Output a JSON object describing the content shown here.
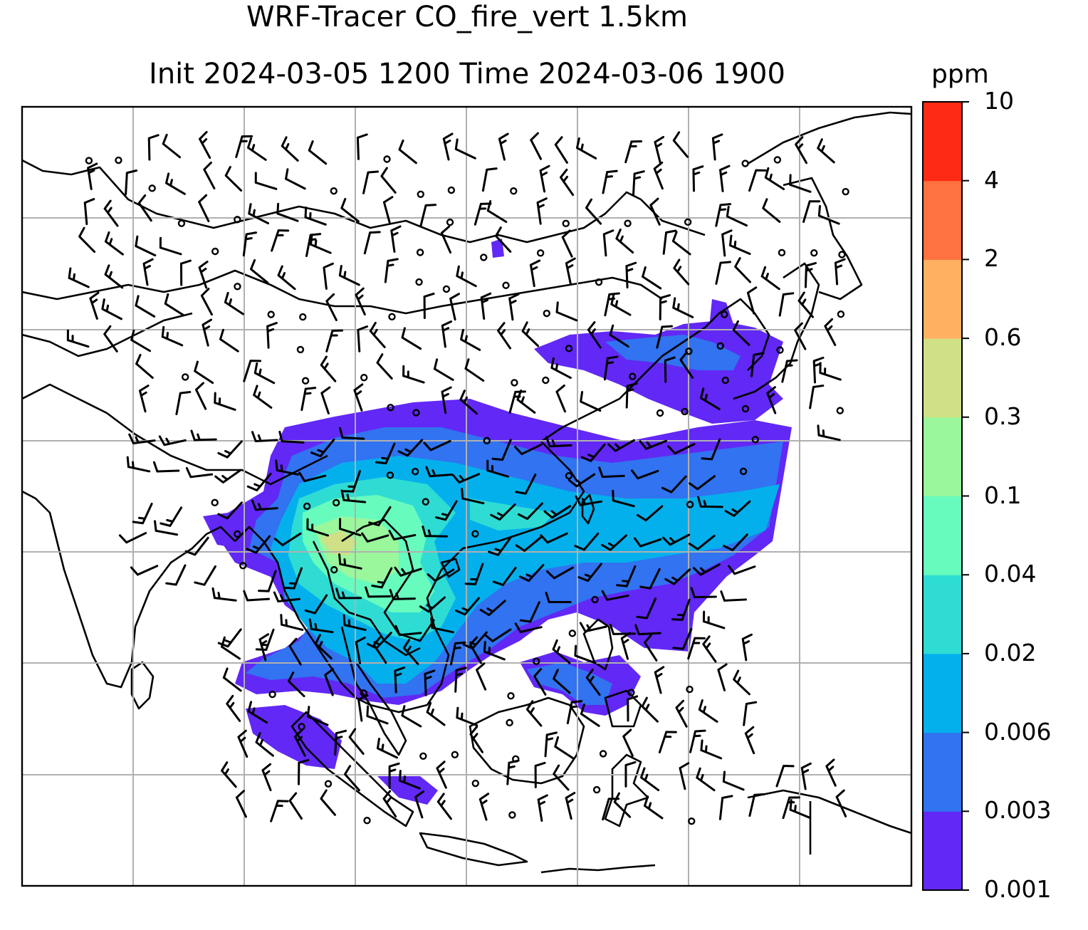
{
  "title": {
    "line1": "WRF-Tracer CO_fire_vert 1.5km",
    "line2": "Init 2024-03-05 1200 Time 2024-03-06 1900"
  },
  "colorbar": {
    "unit": "ppm",
    "levels": [
      "0.001",
      "0.003",
      "0.006",
      "0.02",
      "0.04",
      "0.1",
      "0.3",
      "0.6",
      "2",
      "4",
      "10"
    ],
    "colors": [
      "#6228f5",
      "#3173f0",
      "#04b0ec",
      "#2fdcd4",
      "#67fbbe",
      "#9af79c",
      "#cfe086",
      "#ffb161",
      "#ff7140",
      "#ff2a15"
    ]
  },
  "map": {
    "gridlines": true,
    "barb_color": "#000000",
    "coastline_color": "#000000"
  }
}
